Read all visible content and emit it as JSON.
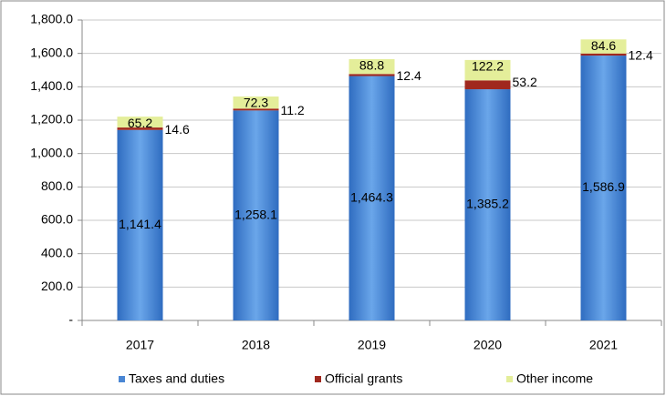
{
  "chart_data": {
    "type": "stacked_bar",
    "categories": [
      "2017",
      "2018",
      "2019",
      "2020",
      "2021"
    ],
    "series": [
      {
        "name": "Taxes and duties",
        "color": "#4a86d4",
        "values": [
          1141.4,
          1258.1,
          1464.3,
          1385.2,
          1586.9
        ],
        "value_labels": [
          "1,141.4",
          "1,258.1",
          "1,464.3",
          "1,385.2",
          "1,586.9"
        ]
      },
      {
        "name": "Official grants",
        "color": "#a0281e",
        "values": [
          14.6,
          11.2,
          12.4,
          53.2,
          12.4
        ]
      },
      {
        "name": "Other income",
        "color": "#e4ee9a",
        "values": [
          65.2,
          72.3,
          88.8,
          122.2,
          84.6
        ]
      }
    ],
    "ylim": [
      0,
      1800
    ],
    "yticks": [
      {
        "value": 0,
        "label": "-"
      },
      {
        "value": 200,
        "label": "200.0"
      },
      {
        "value": 400,
        "label": "400.0"
      },
      {
        "value": 600,
        "label": "600.0"
      },
      {
        "value": 800,
        "label": "800.0"
      },
      {
        "value": 1000,
        "label": "1,000.0"
      },
      {
        "value": 1200,
        "label": "1,200.0"
      },
      {
        "value": 1400,
        "label": "1,400.0"
      },
      {
        "value": 1600,
        "label": "1,600.0"
      },
      {
        "value": 1800,
        "label": "1,800.0"
      }
    ],
    "grid": true,
    "legend": "bottom"
  }
}
